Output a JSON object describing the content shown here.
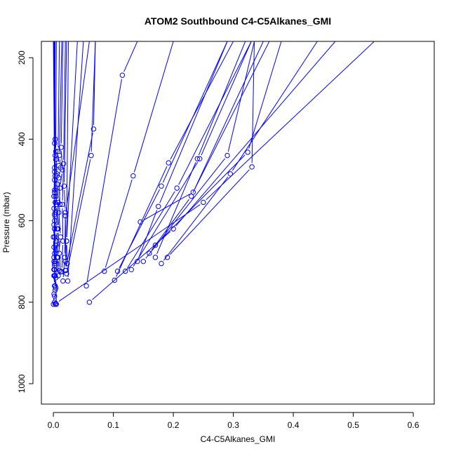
{
  "chart_data": {
    "type": "line",
    "title": "ATOM2 Southbound C4-C5Alkanes_GMI",
    "xlabel": "C4-C5Alkanes_GMI",
    "ylabel": "Pressure (mbar)",
    "xlim": [
      -0.02,
      0.635
    ],
    "ylim": [
      1050,
      160
    ],
    "x_ticks": [
      0.0,
      0.1,
      0.2,
      0.3,
      0.4,
      0.5,
      0.6
    ],
    "x_tick_labels": [
      "0.0",
      "0.1",
      "0.2",
      "0.3",
      "0.4",
      "0.5",
      "0.6"
    ],
    "y_ticks": [
      200,
      400,
      600,
      800,
      1000
    ],
    "y_tick_labels": [
      "200",
      "400",
      "600",
      "800",
      "1000"
    ],
    "y_reversed": true,
    "grid": false,
    "color": "#0000ff",
    "series": [
      {
        "x": [
          0.0,
          0.001,
          0.002,
          0.001,
          0.002,
          0.001,
          0.0,
          0.002,
          0.001,
          0.001,
          0.002,
          0.0
        ],
        "y": [
          805,
          780,
          760,
          735,
          710,
          690,
          640,
          600,
          570,
          540,
          500,
          160
        ]
      },
      {
        "x": [
          0.003,
          0.002,
          0.004,
          0.003,
          0.002,
          0.003,
          0.004,
          0.002,
          0.003,
          0.002,
          0.003,
          0.004,
          0.003,
          0.002
        ],
        "y": [
          805,
          785,
          765,
          735,
          720,
          700,
          660,
          620,
          580,
          530,
          490,
          450,
          400,
          160
        ]
      },
      {
        "x": [
          0.005,
          0.004,
          0.006,
          0.005,
          0.007,
          0.005,
          0.006,
          0.004,
          0.005
        ],
        "y": [
          805,
          740,
          690,
          650,
          620,
          560,
          490,
          430,
          160
        ]
      },
      {
        "x": [
          0.002,
          0.001,
          0.003,
          0.002,
          0.001,
          0.002,
          0.003,
          0.001
        ],
        "y": [
          735,
          720,
          700,
          620,
          540,
          470,
          440,
          160
        ]
      },
      {
        "x": [
          0.002,
          0.003,
          0.001,
          0.002,
          0.003,
          0.002,
          0.001
        ],
        "y": [
          800,
          770,
          700,
          640,
          590,
          525,
          160
        ]
      },
      {
        "x": [
          0.003,
          0.002,
          0.001,
          0.002,
          0.004,
          0.002,
          0.003
        ],
        "y": [
          760,
          705,
          665,
          585,
          540,
          410,
          160
        ]
      },
      {
        "x": [
          0.001,
          0.002,
          0.001,
          0.003,
          0.002,
          0.001
        ],
        "y": [
          720,
          680,
          610,
          555,
          480,
          160
        ]
      },
      {
        "x": [
          0.008,
          0.007,
          0.006,
          0.008,
          0.007,
          0.006,
          0.009,
          0.008,
          0.01
        ],
        "y": [
          735,
          690,
          620,
          555,
          510,
          485,
          465,
          430,
          160
        ]
      },
      {
        "x": [
          0.012,
          0.01,
          0.008,
          0.011,
          0.009,
          0.012,
          0.01,
          0.014
        ],
        "y": [
          725,
          680,
          620,
          560,
          495,
          470,
          440,
          160
        ]
      },
      {
        "x": [
          0.01,
          0.008,
          0.012,
          0.009,
          0.011,
          0.015,
          0.013,
          0.016
        ],
        "y": [
          722,
          690,
          640,
          580,
          520,
          475,
          420,
          160
        ]
      },
      {
        "x": [
          0.016,
          0.019,
          0.02,
          0.018,
          0.022
        ],
        "y": [
          748,
          690,
          580,
          515,
          160
        ]
      },
      {
        "x": [
          0.014,
          0.016,
          0.015,
          0.017,
          0.02
        ],
        "y": [
          725,
          650,
          560,
          460,
          160
        ]
      },
      {
        "x": [
          0.02,
          0.022,
          0.025
        ],
        "y": [
          700,
          650,
          160
        ]
      },
      {
        "x": [
          0.021,
          0.02,
          0.06
        ],
        "y": [
          722,
          588,
          160
        ]
      },
      {
        "x": [
          0.023,
          0.022,
          0.04
        ],
        "y": [
          705,
          650,
          160
        ]
      },
      {
        "x": [
          0.024,
          0.05
        ],
        "y": [
          748,
          160
        ]
      },
      {
        "x": [
          0.02,
          0.067,
          0.07
        ],
        "y": [
          722,
          375,
          160
        ]
      },
      {
        "x": [
          0.022,
          0.063,
          0.07
        ],
        "y": [
          730,
          440,
          160
        ]
      },
      {
        "x": [
          0.055,
          0.115,
          0.14
        ],
        "y": [
          760,
          243,
          160
        ]
      },
      {
        "x": [
          0.085,
          0.133,
          0.2
        ],
        "y": [
          724,
          490,
          160
        ]
      },
      {
        "x": [
          0.102,
          0.192,
          0.3
        ],
        "y": [
          746,
          458,
          160
        ]
      },
      {
        "x": [
          0.107,
          0.18,
          0.29
        ],
        "y": [
          724,
          515,
          160
        ]
      },
      {
        "x": [
          0.12,
          0.206,
          0.33
        ],
        "y": [
          724,
          520,
          160
        ]
      },
      {
        "x": [
          0.145,
          0.233,
          0.36
        ],
        "y": [
          603,
          530,
          160
        ]
      },
      {
        "x": [
          0.17,
          0.24,
          0.32
        ],
        "y": [
          690,
          448,
          160
        ]
      },
      {
        "x": [
          0.14,
          0.175,
          0.29
        ],
        "y": [
          700,
          565,
          160
        ]
      },
      {
        "x": [
          0.16,
          0.23,
          0.35
        ],
        "y": [
          680,
          540,
          160
        ]
      },
      {
        "x": [
          0.13,
          0.244,
          0.33
        ],
        "y": [
          720,
          448,
          160
        ]
      },
      {
        "x": [
          0.18,
          0.295,
          0.44
        ],
        "y": [
          705,
          485,
          160
        ]
      },
      {
        "x": [
          0.15,
          0.29,
          0.335
        ],
        "y": [
          700,
          440,
          160
        ]
      },
      {
        "x": [
          0.19,
          0.331,
          0.335
        ],
        "y": [
          690,
          468,
          160
        ]
      },
      {
        "x": [
          0.17,
          0.324,
          0.38
        ],
        "y": [
          660,
          432,
          160
        ]
      },
      {
        "x": [
          0.06,
          0.2,
          0.47
        ],
        "y": [
          800,
          620,
          160
        ]
      },
      {
        "x": [
          0.004,
          0.25,
          0.535
        ],
        "y": [
          803,
          555,
          160
        ]
      }
    ]
  }
}
